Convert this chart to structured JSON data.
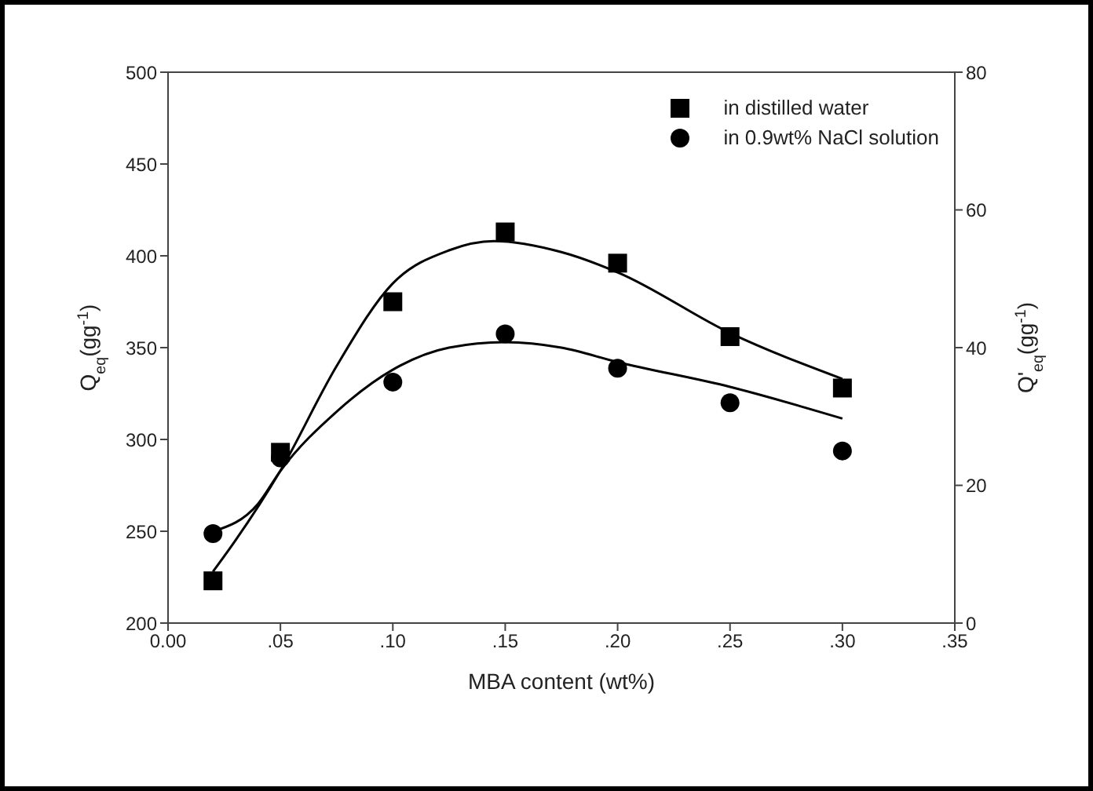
{
  "chart_data": {
    "type": "scatter",
    "xlabel": "MBA content (wt%)",
    "ylabel": "Q$_{eq}$(gg$^{-1}$)",
    "y2label": "Q'$_{eq}$(gg$^{-1}$)",
    "xlim": [
      0,
      0.35
    ],
    "xticks": [
      {
        "value": 0,
        "label": "0.00"
      },
      {
        "value": 0.05,
        "label": ".05"
      },
      {
        "value": 0.1,
        "label": ".10"
      },
      {
        "value": 0.15,
        "label": ".15"
      },
      {
        "value": 0.2,
        "label": ".20"
      },
      {
        "value": 0.25,
        "label": ".25"
      },
      {
        "value": 0.3,
        "label": ".30"
      },
      {
        "value": 0.35,
        "label": ".35"
      }
    ],
    "ylim": [
      200,
      500
    ],
    "yticks": [
      200,
      250,
      300,
      350,
      400,
      450,
      500
    ],
    "y2lim": [
      0,
      80
    ],
    "y2ticks": [
      0,
      20,
      40,
      60,
      80
    ],
    "x": [
      0.02,
      0.05,
      0.1,
      0.15,
      0.2,
      0.25,
      0.3
    ],
    "series": [
      {
        "name": "in distilled water",
        "color": "#000000",
        "marker": "square",
        "values": [
          223,
          293,
          375,
          413,
          396,
          356,
          328
        ]
      },
      {
        "name": "in 0.9wt% NaCl solution",
        "color": "#000000",
        "marker": "circle",
        "axis": "y2",
        "values": [
          13,
          24,
          35,
          42,
          37,
          32,
          25
        ]
      },
      {
        "type": "line",
        "color": "#000000",
        "marker": "none",
        "x": [
          0.02,
          0.03,
          0.05,
          0.075,
          0.1,
          0.125,
          0.145,
          0.175,
          0.2,
          0.25,
          0.3
        ],
        "values": [
          228,
          245,
          283,
          340,
          385,
          403,
          408,
          402,
          391,
          358,
          333
        ]
      },
      {
        "type": "line",
        "color": "#000000",
        "marker": "none",
        "axis": "y2",
        "x": [
          0.02,
          0.04,
          0.05,
          0.075,
          0.1,
          0.125,
          0.15,
          0.175,
          0.2,
          0.25,
          0.3
        ],
        "values": [
          13.3,
          17.3,
          22.1,
          30.7,
          36.8,
          40,
          40.8,
          40,
          37.9,
          34.3,
          29.7
        ]
      }
    ],
    "legend": "top right",
    "grid": false
  }
}
